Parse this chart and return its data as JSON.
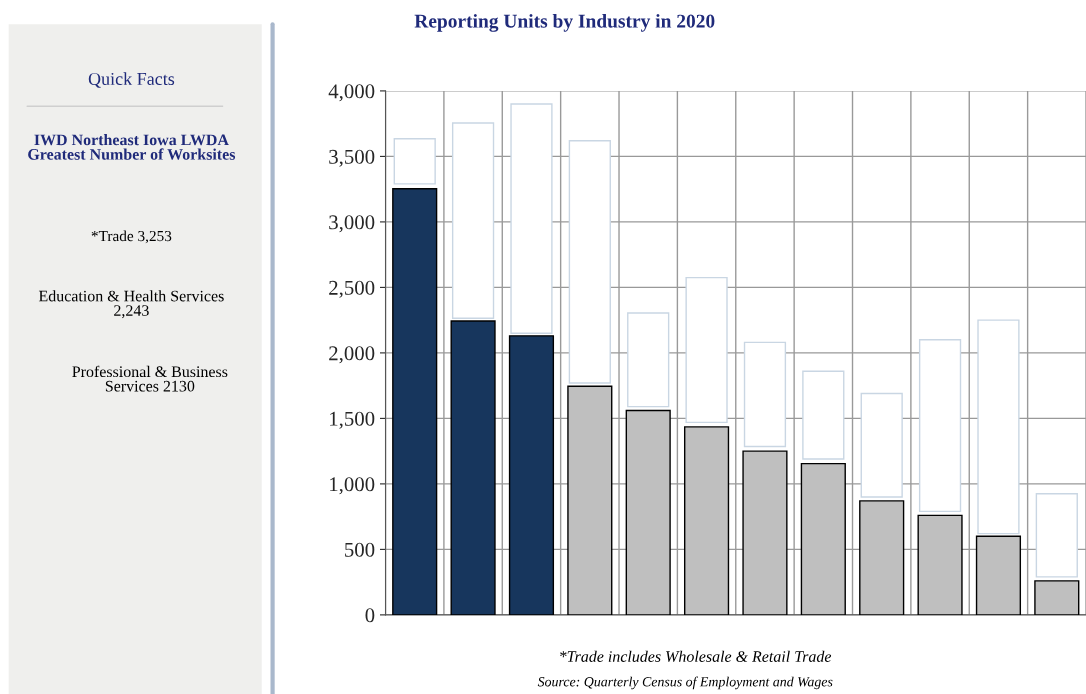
{
  "chart_data": {
    "type": "bar",
    "title": "Reporting Units by Industry in 2020",
    "categories": [
      null,
      null,
      null,
      null,
      null,
      null,
      null,
      null,
      null,
      null,
      null,
      null
    ],
    "series": [
      {
        "values": [
          3253,
          2243,
          2130,
          1745,
          1560,
          1435,
          1250,
          1155,
          870,
          760,
          600,
          260
        ],
        "colors": [
          "#17365d",
          "#17365d",
          "#17365d",
          "#bfbfbf",
          "#bfbfbf",
          "#bfbfbf",
          "#bfbfbf",
          "#bfbfbf",
          "#bfbfbf",
          "#bfbfbf",
          "#bfbfbf",
          "#bfbfbf"
        ]
      },
      {
        "color": "#ffffff",
        "base": [
          3290,
          2265,
          2150,
          1770,
          1590,
          1470,
          1285,
          1190,
          900,
          790,
          620,
          290
        ],
        "values": [
          345,
          1490,
          1750,
          1850,
          715,
          1105,
          795,
          670,
          790,
          1310,
          1630,
          635
        ]
      }
    ],
    "ylim": [
      0,
      4000
    ],
    "yticks": [
      {
        "value": 0,
        "label": "0"
      },
      {
        "value": 500,
        "label": "500"
      },
      {
        "value": 1000,
        "label": "1,000"
      },
      {
        "value": 1500,
        "label": "1,500"
      },
      {
        "value": 2000,
        "label": "2,000"
      },
      {
        "value": 2500,
        "label": "2,500"
      },
      {
        "value": 3000,
        "label": "3,000"
      },
      {
        "value": 3500,
        "label": "3,500"
      },
      {
        "value": 4000,
        "label": "4,000"
      }
    ],
    "grid": true,
    "legend": false,
    "annotations": [
      "Quick Facts",
      "IWD Northeast Iowa LWDA\nGreatest Number of Worksites",
      "*Trade 3,253",
      "Education & Health Services\n2,243",
      "Professional & Business\nServices 2130",
      "*Trade includes Wholesale & Retail Trade",
      "Source: Quarterly Census of Employment and Wages"
    ]
  }
}
